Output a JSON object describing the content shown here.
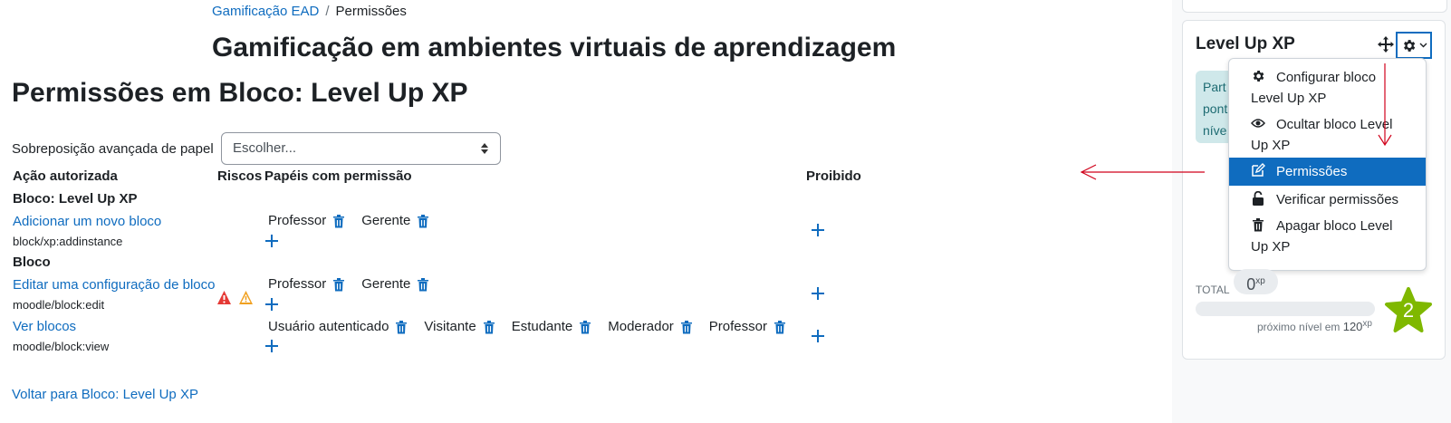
{
  "breadcrumb": {
    "course": "Gamificação EAD",
    "separator": "/",
    "current": "Permissões"
  },
  "course_title": "Gamificação em ambientes virtuais de aprendizagem",
  "page_title": "Permissões em Bloco: Level Up XP",
  "override": {
    "label": "Sobreposição avançada de papel",
    "selected": "Escolher..."
  },
  "table": {
    "headers": {
      "action": "Ação autorizada",
      "risks": "Riscos",
      "roles": "Papéis com permissão",
      "prohibited": "Proibido"
    },
    "sections": [
      {
        "title": "Bloco: Level Up XP",
        "capabilities": [
          {
            "name": "Adicionar um novo bloco",
            "id": "block/xp:addinstance",
            "roles": [
              "Professor",
              "Gerente"
            ],
            "risks": []
          }
        ]
      },
      {
        "title": "Bloco",
        "capabilities": [
          {
            "name": "Editar uma configuração de bloco",
            "id": "moodle/block:edit",
            "roles": [
              "Professor",
              "Gerente"
            ],
            "risks": [
              "risk-xss-icon",
              "risk-config-icon"
            ]
          },
          {
            "name": "Ver blocos",
            "id": "moodle/block:view",
            "roles": [
              "Usuário autenticado",
              "Visitante",
              "Estudante",
              "Moderador",
              "Professor"
            ],
            "risks": []
          }
        ]
      }
    ]
  },
  "back_link": "Voltar para Bloco: Level Up XP",
  "block": {
    "title": "Level Up XP",
    "info_lines": [
      "Part",
      "pont",
      "níve"
    ],
    "menu": [
      {
        "icon": "gear-icon",
        "line1": "Configurar bloco",
        "line2": "Level Up XP"
      },
      {
        "icon": "eye-icon",
        "line1": "Ocultar bloco Level",
        "line2": "Up XP"
      },
      {
        "icon": "edit-icon",
        "line1": "Permissões",
        "line2": ""
      },
      {
        "icon": "unlock-icon",
        "line1": "Verificar permissões",
        "line2": ""
      },
      {
        "icon": "trash-icon",
        "line1": "Apagar bloco Level",
        "line2": "Up XP"
      }
    ],
    "total_label": "TOTAL",
    "xp_value": "0",
    "xp_unit": "xp",
    "next_label": "próximo nível em",
    "next_value": "120",
    "level": "2",
    "progress": 0
  },
  "colors": {
    "link": "#0f6cbf",
    "active_menu": "#0f6cbf",
    "level_star": "#7fb800",
    "annotation": "#d0021b"
  }
}
